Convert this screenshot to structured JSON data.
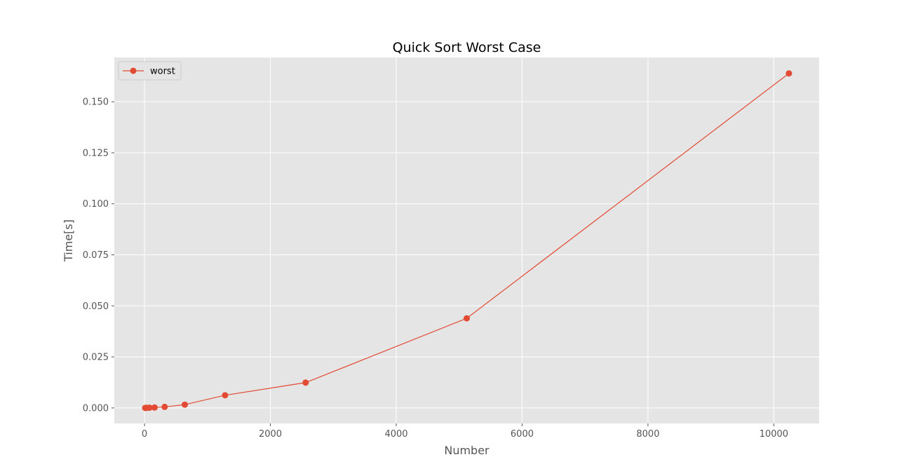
{
  "chart_data": {
    "type": "line",
    "title": "Quick Sort Worst Case",
    "xlabel": "Number",
    "ylabel": "Time[s]",
    "xlim": [
      -480,
      10720
    ],
    "ylim": [
      -0.0076,
      0.1717
    ],
    "xticks": [
      0,
      2000,
      4000,
      6000,
      8000,
      10000
    ],
    "xtick_labels": [
      "0",
      "2000",
      "4000",
      "6000",
      "8000",
      "10000"
    ],
    "yticks": [
      0.0,
      0.025,
      0.05,
      0.075,
      0.1,
      0.125,
      0.15
    ],
    "ytick_labels": [
      "0.000",
      "0.025",
      "0.050",
      "0.075",
      "0.100",
      "0.125",
      "0.150"
    ],
    "grid": true,
    "legend_position": "top-left",
    "series": [
      {
        "name": "worst",
        "color": "#e24a33",
        "marker": "circle",
        "x": [
          10,
          20,
          40,
          80,
          160,
          320,
          640,
          1280,
          2560,
          5120,
          10240
        ],
        "y": [
          0.0,
          2e-05,
          5e-05,
          0.0001,
          0.0002,
          0.0005,
          0.0016,
          0.0062,
          0.0124,
          0.0439,
          0.1639
        ]
      }
    ]
  }
}
